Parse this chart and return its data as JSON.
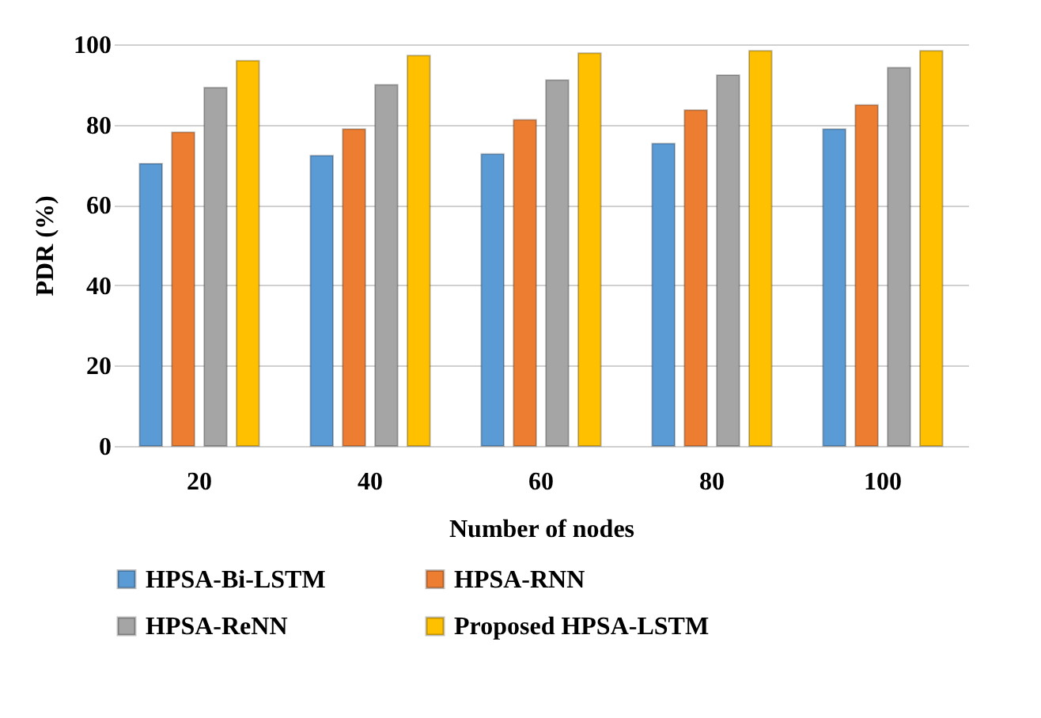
{
  "chart_data": {
    "type": "bar",
    "xlabel": "Number of nodes",
    "ylabel": "PDR (%)",
    "categories": [
      "20",
      "40",
      "60",
      "80",
      "100"
    ],
    "series": [
      {
        "name": "HPSA-Bi-LSTM",
        "color": "#5b9bd5",
        "values": [
          70.3,
          72.3,
          72.7,
          75.3,
          78.9
        ]
      },
      {
        "name": "HPSA-RNN",
        "color": "#ed7d31",
        "values": [
          78.1,
          78.9,
          81.2,
          83.6,
          84.9
        ]
      },
      {
        "name": "HPSA-ReNN",
        "color": "#a5a5a5",
        "values": [
          89.2,
          89.9,
          91.1,
          92.3,
          94.2
        ]
      },
      {
        "name": "Proposed HPSA-LSTM",
        "color": "#ffc000",
        "values": [
          95.9,
          97.2,
          97.8,
          98.4,
          98.4
        ]
      }
    ],
    "ylim": [
      0,
      100
    ],
    "yticks": [
      0,
      20,
      40,
      60,
      80,
      100
    ],
    "grid": "y",
    "legend": "bottom"
  }
}
